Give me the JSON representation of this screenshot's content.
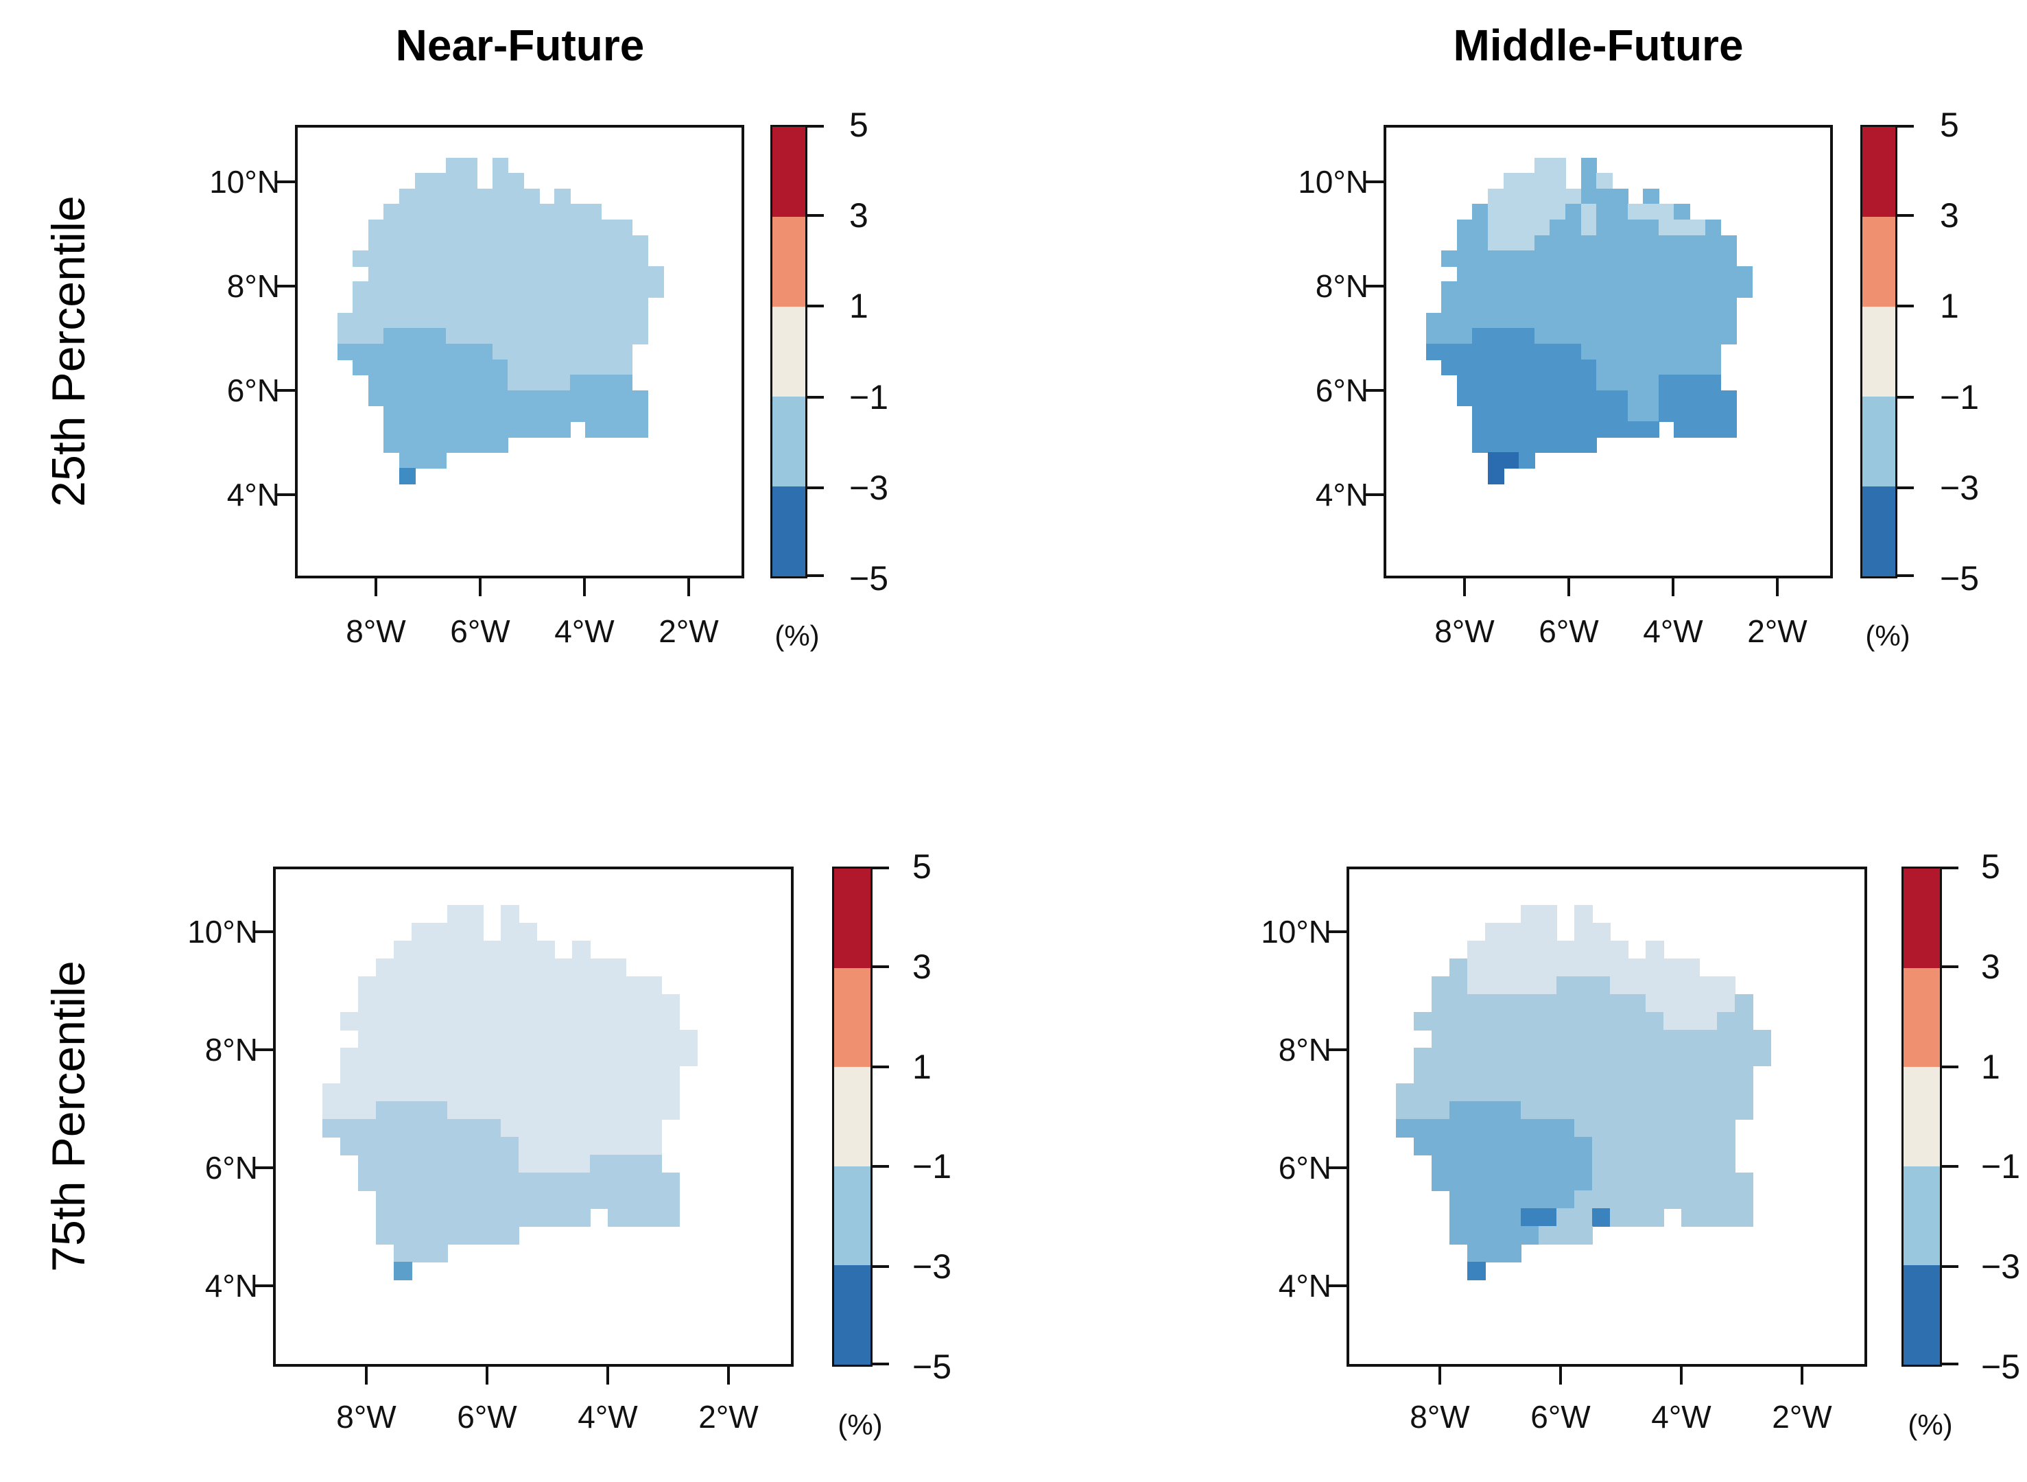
{
  "figure": {
    "columns": [
      {
        "title": "Near-Future"
      },
      {
        "title": "Middle-Future"
      }
    ],
    "rows": [
      {
        "label": "25th Percentile"
      },
      {
        "label": "75th Percentile"
      }
    ]
  },
  "axes": {
    "x_tick_labels": [
      "8°W",
      "6°W",
      "4°W",
      "2°W"
    ],
    "y_tick_labels": [
      "10°N",
      "8°N",
      "6°N",
      "4°N"
    ]
  },
  "colorbar": {
    "tick_labels": [
      "5",
      "3",
      "1",
      "−1",
      "−3",
      "−5"
    ],
    "unit": "(%)",
    "range": [
      -5,
      5
    ],
    "breaks": [
      5,
      3,
      1,
      -1,
      -3,
      -5
    ],
    "segment_colors": [
      "#b2182b",
      "#ef9070",
      "#f0ebe0",
      "#99c7de",
      "#2e6fb0"
    ]
  },
  "chart_data": [
    {
      "type": "heatmap",
      "title": "Near-Future",
      "subtitle": "25th Percentile",
      "xlabel_ticks": [
        "8°W",
        "6°W",
        "4°W",
        "2°W"
      ],
      "ylabel_ticks": [
        "10°N",
        "8°N",
        "6°N",
        "4°N"
      ],
      "legend_unit": "(%)",
      "legend_breaks": [
        5,
        3,
        1,
        -1,
        -3,
        -5
      ],
      "palette": {
        "L": "#aed0e4",
        "M": "#7db7d9",
        "D": "#3f8cc4"
      },
      "class_values_percent": {
        "L": -1.5,
        "M": -2.5,
        "D": -3.5
      },
      "grid": [
        ".......LL.L..........",
        ".....LLLL.LL.........",
        "....LLLLLLLLL.L......",
        "...LLLLLLLLLLLLLL....",
        "..LLLLLLLLLLLLLLLLL..",
        "..LLLLLLLLLLLLLLLLLL.",
        ".LLLLLLLLLLLLLLLLLLL.",
        "..LLLLLLLLLLLLLLLLLLL",
        ".LLLLLLLLLLLLLLLLLLLL",
        ".LLLLLLLLLLLLLLLLLLL.",
        "LLLLLLLLLLLLLLLLLLLL.",
        "LLLMMMMLLLLLLLLLLLLL.",
        "MMMMMMMMMMLLLLLLLLL..",
        ".MMMMMMMMMMLLLLLLLL..",
        "..MMMMMMMMMLLLLMMMM..",
        "..MMMMMMMMMMMMMMMMMM.",
        "...MMMMMMMMMMMMMMMMM.",
        "...MMMMMMMMMMMM.MMMM.",
        "...MMMMMMMM..........",
        "....MMM..............",
        "....D................"
      ]
    },
    {
      "type": "heatmap",
      "title": "Middle-Future",
      "subtitle": "25th Percentile",
      "xlabel_ticks": [
        "8°W",
        "6°W",
        "4°W",
        "2°W"
      ],
      "ylabel_ticks": [
        "10°N",
        "8°N",
        "6°N",
        "4°N"
      ],
      "legend_unit": "(%)",
      "legend_breaks": [
        5,
        3,
        1,
        -1,
        -3,
        -5
      ],
      "palette": {
        "P": "#bad7e8",
        "M": "#76b3d7",
        "D": "#4e96c9",
        "K": "#2b6cb0"
      },
      "class_values_percent": {
        "P": -1.2,
        "M": -2.2,
        "D": -3.0,
        "K": -4.5
      },
      "grid": [
        ".......PP.M..........",
        ".....PPPP.MP.........",
        "....PPPPPPMMM.M......",
        "...MPPPPPMPMMPPPM....",
        "..MMPPPPMMPMMMMPPPM..",
        "..MMPPPMMMMMMMMMMMMM.",
        ".MMMMMMMMMMMMMMMMMMM.",
        "..MMMMMMMMMMMMMMMMMMM",
        ".MMMMMMMMMMMMMMMMMMMM",
        ".MMMMMMMMMMMMMMMMMMM.",
        "MMMMMMMMMMMMMMMMMMMM.",
        "MMMDDDDMMMMMMMMMMMMM.",
        "DDDDDDDDDDMMMMMMMMM..",
        ".DDDDDDDDDDMMMMMMMM..",
        "..DDDDDDDDDMMMMDDDD..",
        "..DDDDDDDDDDDMMDDDDD.",
        "...DDDDDDDDDDMMDDDDD.",
        "...DDDDDDDDDDDD.DDDD.",
        "...DDDDDDDD..........",
        "....KKD..............",
        "....K................"
      ]
    },
    {
      "type": "heatmap",
      "title": "Near-Future",
      "subtitle": "75th Percentile",
      "xlabel_ticks": [
        "8°W",
        "6°W",
        "4°W",
        "2°W"
      ],
      "ylabel_ticks": [
        "10°N",
        "8°N",
        "6°N",
        "4°N"
      ],
      "legend_unit": "(%)",
      "legend_breaks": [
        5,
        3,
        1,
        -1,
        -3,
        -5
      ],
      "palette": {
        "P": "#d8e5ee",
        "L": "#aecfe3",
        "D": "#5c9fcb"
      },
      "class_values_percent": {
        "P": -1.1,
        "L": -1.8,
        "D": -3.0
      },
      "grid": [
        ".......PP.P..........",
        ".....PPPP.PP.........",
        "....PPPPPPPPP.P......",
        "...PPPPPPPPPPPPPP....",
        "..PPPPPPPPPPPPPPPPP..",
        "..PPPPPPPPPPPPPPPPPP.",
        ".PPPPPPPPPPPPPPPPPPP.",
        "..PPPPPPPPPPPPPPPPPPP",
        ".PPPPPPPPPPPPPPPPPPPP",
        ".PPPPPPPPPPPPPPPPPPP.",
        "PPPPPPPPPPPPPPPPPPPP.",
        "PPPLLLLPPPPPPPPPPPPP.",
        "LLLLLLLLLLPPPPPPPPP..",
        ".LLLLLLLLLLPPPPPPPP..",
        "..LLLLLLLLLPPPPLLLL..",
        "..LLLLLLLLLLLLLLLLLL.",
        "...LLLLLLLLLLLLLLLLL.",
        "...LLLLLLLLLLLL.LLLL.",
        "...LLLLLLLL..........",
        "....LLL..............",
        "....D................"
      ]
    },
    {
      "type": "heatmap",
      "title": "Middle-Future",
      "subtitle": "75th Percentile",
      "xlabel_ticks": [
        "8°W",
        "6°W",
        "4°W",
        "2°W"
      ],
      "ylabel_ticks": [
        "10°N",
        "8°N",
        "6°N",
        "4°N"
      ],
      "legend_unit": "(%)",
      "legend_breaks": [
        5,
        3,
        1,
        -1,
        -3,
        -5
      ],
      "palette": {
        "P": "#d6e3ec",
        "L": "#a8cbe0",
        "M": "#76b0d4",
        "D": "#3b83bf"
      },
      "class_values_percent": {
        "P": -1.2,
        "L": -1.9,
        "M": -2.8,
        "D": -3.8
      },
      "grid": [
        ".......PP.P..........",
        ".....PPPP.PP.........",
        "....PPPPPPPPP.P......",
        "...LPPPPPPPPPPPPP....",
        "..LLPPPPPLLLPPPPPPP..",
        "..LLLLLLLLLLLLPPPPPL.",
        ".LLLLLLLLLLLLLLPPPLL.",
        "..LLLLLLLLLLLLLLLLLLL",
        ".LLLLLLLLLLLLLLLLLLLL",
        ".LLLLLLLLLLLLLLLLLLL.",
        "LLLLLLLLLLLLLLLLLLLL.",
        "LLLMMMMLLLLLLLLLLLLL.",
        "MMMMMMMMMMLLLLLLLLL..",
        ".MMMMMMMMMMLLLLLLLL..",
        "..MMMMMMMMMLLLLLLLL..",
        "..MMMMMMMMMLLLLLLLLL.",
        "...MMMMMMMLLLLLLLLLL.",
        "...MMMMDDLLDLLL.LLLL.",
        "...MMMMMLLL..........",
        "....MMM..............",
        "....D................"
      ]
    }
  ]
}
